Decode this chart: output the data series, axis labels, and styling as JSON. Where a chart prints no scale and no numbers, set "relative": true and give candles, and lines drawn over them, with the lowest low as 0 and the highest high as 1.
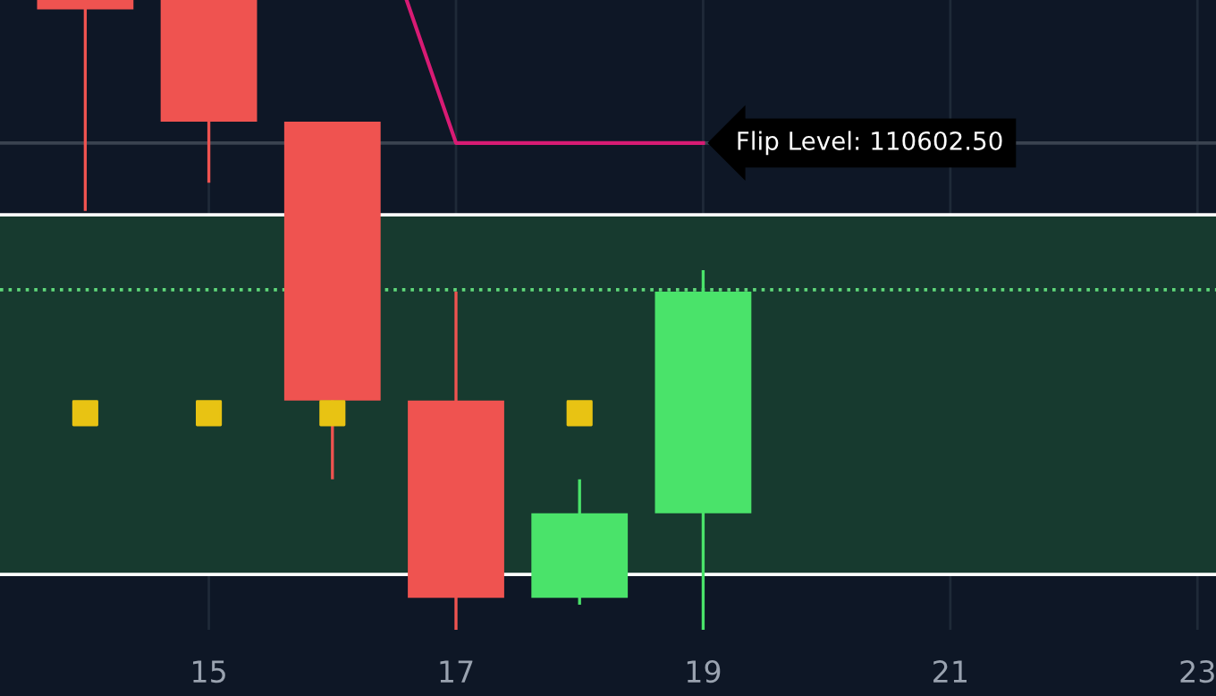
{
  "chart_data": {
    "type": "candlestick",
    "relative": true,
    "x": [
      14,
      15,
      16,
      17,
      18,
      19
    ],
    "ohlc": [
      [
        1,
        1,
        0.665,
        0.985
      ],
      [
        1,
        1,
        0.71,
        0.807
      ],
      [
        0.807,
        0.807,
        0.239,
        0.364
      ],
      [
        0.364,
        0.537,
        0,
        0.051
      ],
      [
        0.051,
        0.239,
        0.04,
        0.185
      ],
      [
        0.185,
        0.571,
        0,
        0.537
      ]
    ],
    "colors": [
      "#ef5350",
      "#ef5350",
      "#ef5350",
      "#ef5350",
      "#4ae36a",
      "#4ae36a"
    ],
    "series": [
      {
        "type": "scatter",
        "x": [
          14,
          15,
          16,
          18
        ],
        "values": [
          0.344,
          0.344,
          0.344,
          0.344
        ],
        "color": "#e8c313",
        "marker": "square"
      },
      {
        "type": "line",
        "x": [
          16.6,
          17,
          19
        ],
        "values": [
          1,
          0.773,
          0.773
        ],
        "color": "#d81b74"
      }
    ],
    "annotations": [
      "Flip Level: 110602.50"
    ],
    "ref_lines": [
      {
        "axis": "y",
        "value": 0.773,
        "color": "#3a4350",
        "line_style": "solid"
      },
      {
        "axis": "y",
        "value": 0.659,
        "color": "#ffffff",
        "line_style": "solid"
      },
      {
        "axis": "y",
        "value": 0.088,
        "color": "#ffffff",
        "line_style": "solid"
      },
      {
        "axis": "y",
        "value": 0.54,
        "color": "#5fd87a",
        "line_style": "dotted"
      }
    ],
    "bands": [
      {
        "axis": "y",
        "from": 0.088,
        "to": 0.659,
        "color": "#173a2f"
      }
    ],
    "xlim": [
      13.31,
      23.15
    ],
    "xticks": [
      15,
      17,
      19,
      21,
      23
    ],
    "grid": "x"
  }
}
